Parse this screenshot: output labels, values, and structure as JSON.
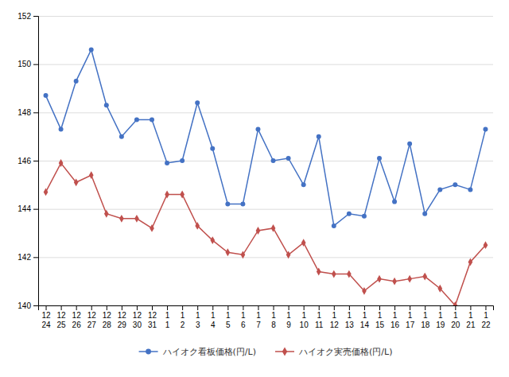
{
  "chart_data": {
    "type": "line",
    "categories": [
      [
        "12",
        "24"
      ],
      [
        "12",
        "25"
      ],
      [
        "12",
        "26"
      ],
      [
        "12",
        "27"
      ],
      [
        "12",
        "28"
      ],
      [
        "12",
        "29"
      ],
      [
        "12",
        "30"
      ],
      [
        "12",
        "31"
      ],
      [
        "1",
        "1"
      ],
      [
        "1",
        "2"
      ],
      [
        "1",
        "3"
      ],
      [
        "1",
        "4"
      ],
      [
        "1",
        "5"
      ],
      [
        "1",
        "6"
      ],
      [
        "1",
        "7"
      ],
      [
        "1",
        "8"
      ],
      [
        "1",
        "9"
      ],
      [
        "1",
        "10"
      ],
      [
        "1",
        "11"
      ],
      [
        "1",
        "12"
      ],
      [
        "1",
        "13"
      ],
      [
        "1",
        "14"
      ],
      [
        "1",
        "15"
      ],
      [
        "1",
        "16"
      ],
      [
        "1",
        "17"
      ],
      [
        "1",
        "18"
      ],
      [
        "1",
        "19"
      ],
      [
        "1",
        "20"
      ],
      [
        "1",
        "21"
      ],
      [
        "1",
        "22"
      ]
    ],
    "series": [
      {
        "name": "ハイオク看板価格(円/L)",
        "color": "#4472C4",
        "marker": "circle",
        "line_style": "solid",
        "values": [
          148.7,
          147.3,
          149.3,
          150.6,
          148.3,
          147.0,
          147.7,
          147.7,
          145.9,
          146.0,
          148.4,
          146.5,
          144.2,
          144.2,
          147.3,
          146.0,
          146.1,
          145.0,
          147.0,
          143.3,
          143.8,
          143.7,
          146.1,
          144.3,
          146.7,
          143.8,
          144.8,
          145.0,
          144.8,
          147.3
        ]
      },
      {
        "name": "ハイオク実売価格(円/L)",
        "color": "#C0504D",
        "marker": "diamond",
        "line_style": "solid",
        "values": [
          144.7,
          145.9,
          145.1,
          145.4,
          143.8,
          143.6,
          143.6,
          143.2,
          144.6,
          144.6,
          143.3,
          142.7,
          142.2,
          142.1,
          143.1,
          143.2,
          142.1,
          142.6,
          141.4,
          141.3,
          141.3,
          140.6,
          141.1,
          141.0,
          141.1,
          141.2,
          140.7,
          140.0,
          141.8,
          142.5
        ]
      }
    ],
    "ylim": [
      140,
      152
    ],
    "yticks": [
      140,
      142,
      144,
      146,
      148,
      150,
      152
    ],
    "grid": true,
    "legend": "bottom"
  }
}
